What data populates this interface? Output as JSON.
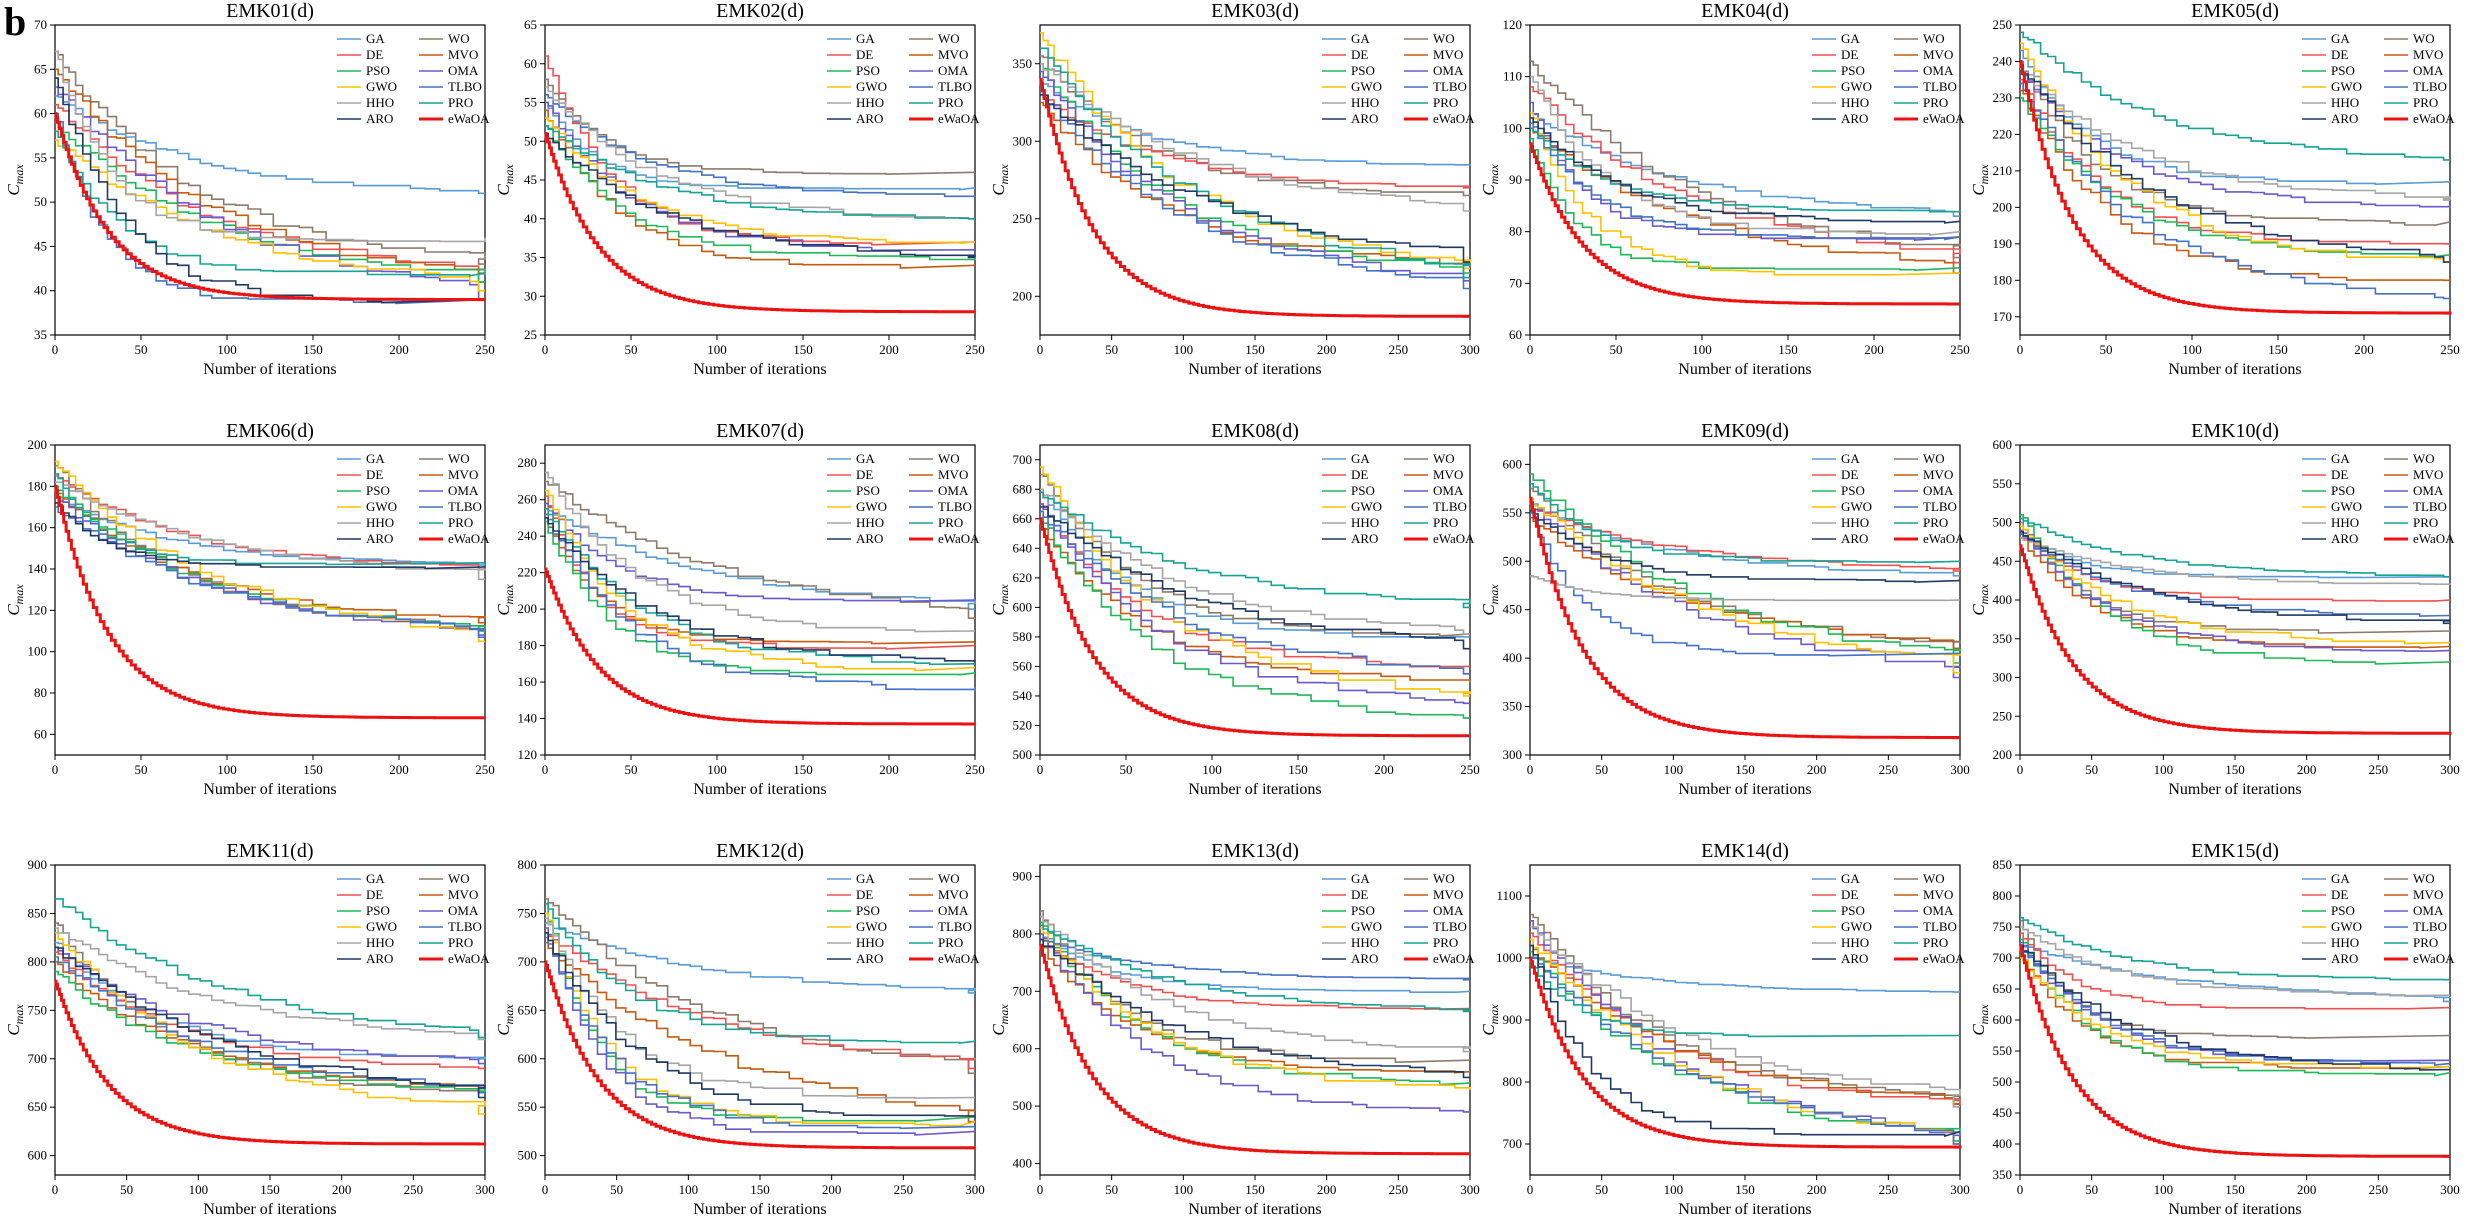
{
  "figure": {
    "panel_letter": "b",
    "legend_order": [
      "GA",
      "WO",
      "DE",
      "MVO",
      "PSO",
      "OMA",
      "GWO",
      "TLBO",
      "HHO",
      "PRO",
      "ARO",
      "eWaOA"
    ],
    "colors": {
      "GA": "#5b9bd5",
      "WO": "#8c7b6b",
      "DE": "#f0504f",
      "MVO": "#c55a11",
      "PSO": "#1eb85a",
      "OMA": "#6a5acd",
      "GWO": "#ffc000",
      "TLBO": "#4472c4",
      "HHO": "#a6a6a6",
      "PRO": "#16a394",
      "ARO": "#203864",
      "eWaOA": "#ee1111"
    }
  },
  "chart_data": [
    {
      "type": "line",
      "title": "EMK01(d)",
      "xlabel": "Number of iterations",
      "ylabel": "C_max",
      "xlim": [
        0,
        250
      ],
      "ylim": [
        35,
        70
      ],
      "xticks": [
        0,
        50,
        100,
        150,
        200,
        250
      ],
      "yticks": [
        35,
        40,
        45,
        50,
        55,
        60,
        65,
        70
      ],
      "start": {
        "GA": 62,
        "WO": 67,
        "DE": 61,
        "MVO": 65,
        "PSO": 59,
        "OMA": 63,
        "GWO": 57,
        "TLBO": 60,
        "HHO": 67,
        "PRO": 58,
        "ARO": 64,
        "eWaOA": 60
      },
      "final": {
        "GA": 51,
        "WO": 43,
        "DE": 42,
        "MVO": 41,
        "PSO": 41,
        "OMA": 39,
        "GWO": 40,
        "TLBO": 39,
        "HHO": 46,
        "PRO": 42,
        "ARO": 39,
        "eWaOA": 39
      }
    },
    {
      "type": "line",
      "title": "EMK02(d)",
      "xlabel": "Number of iterations",
      "ylabel": "C_max",
      "xlim": [
        0,
        250
      ],
      "ylim": [
        25,
        65
      ],
      "xticks": [
        0,
        50,
        100,
        150,
        200,
        250
      ],
      "yticks": [
        25,
        30,
        35,
        40,
        45,
        50,
        55,
        60,
        65
      ],
      "start": {
        "GA": 55,
        "WO": 58,
        "DE": 61,
        "MVO": 54,
        "PSO": 52,
        "OMA": 55,
        "GWO": 53,
        "TLBO": 56,
        "HHO": 57,
        "PRO": 52,
        "ARO": 51,
        "eWaOA": 51
      },
      "final": {
        "GA": 44,
        "WO": 46,
        "DE": 37,
        "MVO": 34,
        "PSO": 35,
        "OMA": 36,
        "GWO": 37,
        "TLBO": 43,
        "HHO": 40,
        "PRO": 40,
        "ARO": 35,
        "eWaOA": 28
      }
    },
    {
      "type": "line",
      "title": "EMK03(d)",
      "xlabel": "Number of iterations",
      "ylabel": "C_max",
      "xlim": [
        0,
        300
      ],
      "ylim": [
        175,
        375
      ],
      "xticks": [
        0,
        50,
        100,
        150,
        200,
        250,
        300
      ],
      "yticks": [
        200,
        250,
        300,
        350
      ],
      "start": {
        "GA": 340,
        "WO": 355,
        "DE": 330,
        "MVO": 325,
        "PSO": 350,
        "OMA": 345,
        "GWO": 370,
        "TLBO": 332,
        "HHO": 350,
        "PRO": 360,
        "ARO": 330,
        "eWaOA": 340
      },
      "final": {
        "GA": 285,
        "WO": 265,
        "DE": 270,
        "MVO": 220,
        "PSO": 215,
        "OMA": 210,
        "GWO": 218,
        "TLBO": 205,
        "HHO": 255,
        "PRO": 212,
        "ARO": 222,
        "eWaOA": 187
      }
    },
    {
      "type": "line",
      "title": "EMK04(d)",
      "xlabel": "Number of iterations",
      "ylabel": "C_max",
      "xlim": [
        0,
        250
      ],
      "ylim": [
        60,
        120
      ],
      "xticks": [
        0,
        50,
        100,
        150,
        200,
        250
      ],
      "yticks": [
        60,
        70,
        80,
        90,
        100,
        110,
        120
      ],
      "start": {
        "GA": 103,
        "WO": 113,
        "DE": 108,
        "MVO": 100,
        "PSO": 98,
        "OMA": 105,
        "GWO": 103,
        "TLBO": 101,
        "HHO": 110,
        "PRO": 100,
        "ARO": 102,
        "eWaOA": 97
      },
      "final": {
        "GA": 83,
        "WO": 75,
        "DE": 74,
        "MVO": 72,
        "PSO": 73,
        "OMA": 79,
        "GWO": 72,
        "TLBO": 79,
        "HHO": 80,
        "PRO": 84,
        "ARO": 82,
        "eWaOA": 66
      }
    },
    {
      "type": "line",
      "title": "EMK05(d)",
      "xlabel": "Number of iterations",
      "ylabel": "C_max",
      "xlim": [
        0,
        250
      ],
      "ylim": [
        165,
        250
      ],
      "xticks": [
        0,
        50,
        100,
        150,
        200,
        250
      ],
      "yticks": [
        170,
        180,
        190,
        200,
        210,
        220,
        230,
        240,
        250
      ],
      "start": {
        "GA": 243,
        "WO": 240,
        "DE": 235,
        "MVO": 232,
        "PSO": 230,
        "OMA": 237,
        "GWO": 245,
        "TLBO": 234,
        "HHO": 238,
        "PRO": 248,
        "ARO": 239,
        "eWaOA": 240
      },
      "final": {
        "GA": 207,
        "WO": 196,
        "DE": 190,
        "MVO": 180,
        "PSO": 187,
        "OMA": 200,
        "GWO": 185,
        "TLBO": 175,
        "HHO": 202,
        "PRO": 213,
        "ARO": 185,
        "eWaOA": 171
      }
    },
    {
      "type": "line",
      "title": "EMK06(d)",
      "xlabel": "Number of iterations",
      "ylabel": "C_max",
      "xlim": [
        0,
        250
      ],
      "ylim": [
        50,
        200
      ],
      "xticks": [
        0,
        50,
        100,
        150,
        200,
        250
      ],
      "yticks": [
        60,
        80,
        100,
        120,
        140,
        160,
        180,
        200
      ],
      "start": {
        "GA": 175,
        "WO": 190,
        "DE": 185,
        "MVO": 178,
        "PSO": 180,
        "OMA": 175,
        "GWO": 192,
        "TLBO": 170,
        "HHO": 182,
        "PRO": 186,
        "ARO": 172,
        "eWaOA": 180
      },
      "final": {
        "GA": 142,
        "WO": 110,
        "DE": 140,
        "MVO": 114,
        "PSO": 110,
        "OMA": 108,
        "GWO": 105,
        "TLBO": 107,
        "HHO": 135,
        "PRO": 143,
        "ARO": 141,
        "eWaOA": 68
      }
    },
    {
      "type": "line",
      "title": "EMK07(d)",
      "xlabel": "Number of iterations",
      "ylabel": "C_max",
      "xlim": [
        0,
        250
      ],
      "ylim": [
        120,
        290
      ],
      "xticks": [
        0,
        50,
        100,
        150,
        200,
        250
      ],
      "yticks": [
        120,
        140,
        160,
        180,
        200,
        220,
        240,
        260,
        280
      ],
      "start": {
        "GA": 255,
        "WO": 270,
        "DE": 262,
        "MVO": 250,
        "PSO": 248,
        "OMA": 258,
        "GWO": 265,
        "TLBO": 252,
        "HHO": 275,
        "PRO": 255,
        "ARO": 250,
        "eWaOA": 222
      },
      "final": {
        "GA": 200,
        "WO": 195,
        "DE": 180,
        "MVO": 182,
        "PSO": 165,
        "OMA": 205,
        "GWO": 168,
        "TLBO": 157,
        "HHO": 188,
        "PRO": 170,
        "ARO": 172,
        "eWaOA": 137
      }
    },
    {
      "type": "line",
      "title": "EMK08(d)",
      "xlabel": "Number of iterations",
      "ylabel": "C_max",
      "xlim": [
        0,
        250
      ],
      "ylim": [
        500,
        710
      ],
      "xticks": [
        0,
        50,
        100,
        150,
        200,
        250
      ],
      "yticks": [
        500,
        520,
        540,
        560,
        580,
        600,
        620,
        640,
        660,
        680,
        700
      ],
      "start": {
        "GA": 680,
        "WO": 690,
        "DE": 670,
        "MVO": 655,
        "PSO": 660,
        "OMA": 670,
        "GWO": 695,
        "TLBO": 665,
        "HHO": 680,
        "PRO": 678,
        "ARO": 668,
        "eWaOA": 660
      },
      "final": {
        "GA": 580,
        "WO": 582,
        "DE": 560,
        "MVO": 550,
        "PSO": 525,
        "OMA": 535,
        "GWO": 540,
        "TLBO": 555,
        "HHO": 582,
        "PRO": 600,
        "ARO": 572,
        "eWaOA": 513
      }
    },
    {
      "type": "line",
      "title": "EMK09(d)",
      "xlabel": "Number of iterations",
      "ylabel": "C_max",
      "xlim": [
        0,
        300
      ],
      "ylim": [
        300,
        620
      ],
      "xticks": [
        0,
        50,
        100,
        150,
        200,
        250,
        300
      ],
      "yticks": [
        300,
        350,
        400,
        450,
        500,
        550,
        600
      ],
      "start": {
        "GA": 560,
        "WO": 575,
        "DE": 555,
        "MVO": 545,
        "PSO": 590,
        "OMA": 560,
        "GWO": 565,
        "TLBO": 550,
        "HHO": 485,
        "PRO": 580,
        "ARO": 552,
        "eWaOA": 565
      },
      "final": {
        "GA": 485,
        "WO": 410,
        "DE": 490,
        "MVO": 410,
        "PSO": 395,
        "OMA": 380,
        "GWO": 385,
        "TLBO": 405,
        "HHO": 460,
        "PRO": 500,
        "ARO": 480,
        "eWaOA": 318
      }
    },
    {
      "type": "line",
      "title": "EMK10(d)",
      "xlabel": "Number of iterations",
      "ylabel": "C_max",
      "xlim": [
        0,
        300
      ],
      "ylim": [
        200,
        600
      ],
      "xticks": [
        0,
        50,
        100,
        150,
        200,
        250,
        300
      ],
      "yticks": [
        200,
        250,
        300,
        350,
        400,
        450,
        500,
        550,
        600
      ],
      "start": {
        "GA": 490,
        "WO": 500,
        "DE": 485,
        "MVO": 480,
        "PSO": 510,
        "OMA": 490,
        "GWO": 495,
        "TLBO": 485,
        "HHO": 480,
        "PRO": 505,
        "ARO": 488,
        "eWaOA": 470
      },
      "final": {
        "GA": 430,
        "WO": 360,
        "DE": 400,
        "MVO": 340,
        "PSO": 320,
        "OMA": 335,
        "GWO": 345,
        "TLBO": 380,
        "HHO": 420,
        "PRO": 430,
        "ARO": 370,
        "eWaOA": 228
      }
    },
    {
      "type": "line",
      "title": "EMK11(d)",
      "xlabel": "Number of iterations",
      "ylabel": "C_max",
      "xlim": [
        0,
        300
      ],
      "ylim": [
        580,
        900
      ],
      "xticks": [
        0,
        50,
        100,
        150,
        200,
        250,
        300
      ],
      "yticks": [
        600,
        650,
        700,
        750,
        800,
        850,
        900
      ],
      "start": {
        "GA": 820,
        "WO": 840,
        "DE": 810,
        "MVO": 800,
        "PSO": 790,
        "OMA": 815,
        "GWO": 830,
        "TLBO": 805,
        "HHO": 835,
        "PRO": 865,
        "ARO": 815,
        "eWaOA": 780
      },
      "final": {
        "GA": 700,
        "WO": 665,
        "DE": 690,
        "MVO": 670,
        "PSO": 665,
        "OMA": 695,
        "GWO": 643,
        "TLBO": 665,
        "HHO": 720,
        "PRO": 722,
        "ARO": 660,
        "eWaOA": 612
      }
    },
    {
      "type": "line",
      "title": "EMK12(d)",
      "xlabel": "Number of iterations",
      "ylabel": "C_max",
      "xlim": [
        0,
        300
      ],
      "ylim": [
        480,
        800
      ],
      "xticks": [
        0,
        50,
        100,
        150,
        200,
        250,
        300
      ],
      "yticks": [
        500,
        550,
        600,
        650,
        700,
        750,
        800
      ],
      "start": {
        "GA": 740,
        "WO": 765,
        "DE": 730,
        "MVO": 720,
        "PSO": 760,
        "OMA": 735,
        "GWO": 750,
        "TLBO": 725,
        "HHO": 745,
        "PRO": 760,
        "ARO": 730,
        "eWaOA": 700
      },
      "final": {
        "GA": 668,
        "WO": 585,
        "DE": 590,
        "MVO": 535,
        "PSO": 540,
        "OMA": 525,
        "GWO": 535,
        "TLBO": 530,
        "HHO": 560,
        "PRO": 618,
        "ARO": 540,
        "eWaOA": 508
      }
    },
    {
      "type": "line",
      "title": "EMK13(d)",
      "xlabel": "Number of iterations",
      "ylabel": "C_max",
      "xlim": [
        0,
        300
      ],
      "ylim": [
        380,
        920
      ],
      "xticks": [
        0,
        50,
        100,
        150,
        200,
        250,
        300
      ],
      "yticks": [
        400,
        500,
        600,
        700,
        800,
        900
      ],
      "start": {
        "GA": 800,
        "WO": 840,
        "DE": 790,
        "MVO": 780,
        "PSO": 820,
        "OMA": 800,
        "GWO": 810,
        "TLBO": 790,
        "HHO": 830,
        "PRO": 815,
        "ARO": 790,
        "eWaOA": 780
      },
      "final": {
        "GA": 700,
        "WO": 580,
        "DE": 670,
        "MVO": 560,
        "PSO": 540,
        "OMA": 490,
        "GWO": 530,
        "TLBO": 720,
        "HHO": 595,
        "PRO": 665,
        "ARO": 550,
        "eWaOA": 417
      }
    },
    {
      "type": "line",
      "title": "EMK14(d)",
      "xlabel": "Number of iterations",
      "ylabel": "C_max",
      "xlim": [
        0,
        300
      ],
      "ylim": [
        650,
        1150
      ],
      "xticks": [
        0,
        50,
        100,
        150,
        200,
        250,
        300
      ],
      "yticks": [
        700,
        800,
        900,
        1000,
        1100
      ],
      "start": {
        "GA": 1000,
        "WO": 1070,
        "DE": 1040,
        "MVO": 1020,
        "PSO": 1010,
        "OMA": 1060,
        "GWO": 1030,
        "TLBO": 1000,
        "HHO": 1050,
        "PRO": 990,
        "ARO": 1020,
        "eWaOA": 1000
      },
      "final": {
        "GA": 945,
        "WO": 770,
        "DE": 760,
        "MVO": 765,
        "PSO": 705,
        "OMA": 700,
        "GWO": 700,
        "TLBO": 700,
        "HHO": 760,
        "PRO": 875,
        "ARO": 720,
        "eWaOA": 695
      }
    },
    {
      "type": "line",
      "title": "EMK15(d)",
      "xlabel": "Number of iterations",
      "ylabel": "C_max",
      "xlim": [
        0,
        300
      ],
      "ylim": [
        350,
        850
      ],
      "xticks": [
        0,
        50,
        100,
        150,
        200,
        250,
        300
      ],
      "yticks": [
        350,
        400,
        450,
        500,
        550,
        600,
        650,
        700,
        750,
        800,
        850
      ],
      "start": {
        "GA": 720,
        "WO": 760,
        "DE": 740,
        "MVO": 710,
        "PSO": 730,
        "OMA": 725,
        "GWO": 700,
        "TLBO": 715,
        "HHO": 750,
        "PRO": 765,
        "ARO": 720,
        "eWaOA": 720
      },
      "final": {
        "GA": 630,
        "WO": 575,
        "DE": 620,
        "MVO": 525,
        "PSO": 515,
        "OMA": 535,
        "GWO": 525,
        "TLBO": 530,
        "HHO": 640,
        "PRO": 665,
        "ARO": 520,
        "eWaOA": 380
      }
    }
  ]
}
